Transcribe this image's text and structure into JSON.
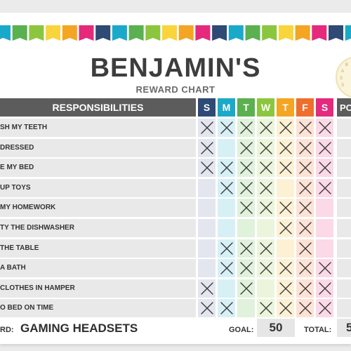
{
  "title": "BENJAMIN'S",
  "subtitle": "REWARD CHART",
  "header": {
    "responsibilities": "RESPONSIBILITIES",
    "days": [
      "S",
      "M",
      "T",
      "W",
      "T",
      "F",
      "S"
    ],
    "points": "PO"
  },
  "day_header_colors": [
    "#2e4a75",
    "#1ba9c9",
    "#5bb04f",
    "#8cc63f",
    "#f4a524",
    "#ee6f2d",
    "#e5297d"
  ],
  "cell_colors": [
    "#e3e6ef",
    "#d6f0f6",
    "#e0f1dc",
    "#ebf5dc",
    "#fdf1d4",
    "#fde2d5",
    "#fbd9e7"
  ],
  "tasks": [
    {
      "label": "SH MY TEETH",
      "marks": [
        1,
        1,
        1,
        1,
        1,
        1,
        1
      ]
    },
    {
      "label": "DRESSED",
      "marks": [
        1,
        0,
        1,
        1,
        1,
        1,
        1
      ]
    },
    {
      "label": "E MY BED",
      "marks": [
        1,
        1,
        1,
        1,
        1,
        1,
        1
      ]
    },
    {
      "label": "UP TOYS",
      "marks": [
        0,
        1,
        1,
        1,
        0,
        1,
        1
      ]
    },
    {
      "label": "MY HOMEWORK",
      "marks": [
        0,
        0,
        1,
        1,
        1,
        1,
        0
      ]
    },
    {
      "label": "TY THE DISHWASHER",
      "marks": [
        0,
        0,
        0,
        0,
        1,
        1,
        0
      ]
    },
    {
      "label": "THE TABLE",
      "marks": [
        0,
        1,
        1,
        1,
        0,
        1,
        0
      ]
    },
    {
      "label": " A BATH",
      "marks": [
        0,
        1,
        1,
        1,
        1,
        1,
        1
      ]
    },
    {
      "label": "CLOTHES IN HAMPER",
      "marks": [
        1,
        0,
        1,
        0,
        1,
        1,
        1
      ]
    },
    {
      "label": "O BED ON TIME",
      "marks": [
        1,
        1,
        0,
        1,
        1,
        1,
        1
      ]
    }
  ],
  "footer": {
    "reward_label": "RD:",
    "reward_value": "GAMING HEADSETS",
    "goal_label": "GOAL:",
    "goal_value": "50",
    "total_label": "TOTAL:",
    "total_value": "5"
  },
  "seal_text": [
    "•",
    "B",
    "A",
    "S",
    "S"
  ],
  "bunting_colors": [
    "#1ba9c9",
    "#5bb04f",
    "#8cc63f",
    "#f9d43c",
    "#f4a524",
    "#e5297d",
    "#2e4a75",
    "#1ba9c9",
    "#5bb04f",
    "#8cc63f",
    "#f9d43c",
    "#f4a524",
    "#e5297d",
    "#2e4a75",
    "#1ba9c9",
    "#5bb04f",
    "#8cc63f",
    "#f9d43c",
    "#f4a524",
    "#e5297d",
    "#2e4a75",
    "#1ba9c9"
  ]
}
